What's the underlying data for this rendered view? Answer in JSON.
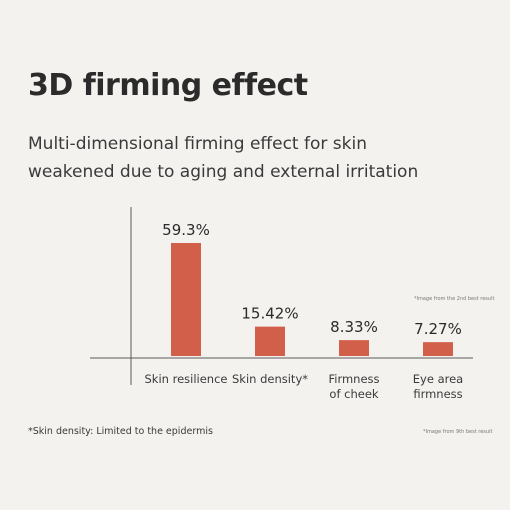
{
  "title": "3D firming effect",
  "subtitle_lines": [
    "Multi-dimensional firming effect for skin",
    "weakened due to aging and external irritation"
  ],
  "colors": {
    "bar": "#d25f4a",
    "axis": "#5a5a5a",
    "background": "#f4f2ef"
  },
  "notes": {
    "image_note_top": "*Image from the 2nd best result",
    "image_note_bottom": "*Image from 9th best result",
    "footnote": "*Skin density: Limited to the epidermis"
  },
  "chart_data": {
    "type": "bar",
    "unit": "%",
    "categories": [
      [
        "Skin resilience"
      ],
      [
        "Skin density*"
      ],
      [
        "Firmness",
        "of cheek"
      ],
      [
        "Eye area",
        "firmness"
      ]
    ],
    "values": [
      59.3,
      15.42,
      8.33,
      7.27
    ],
    "value_labels": [
      "59.3%",
      "15.42%",
      "8.33%",
      "7.27%"
    ],
    "ylim": [
      0,
      59.3
    ],
    "grid": false
  }
}
